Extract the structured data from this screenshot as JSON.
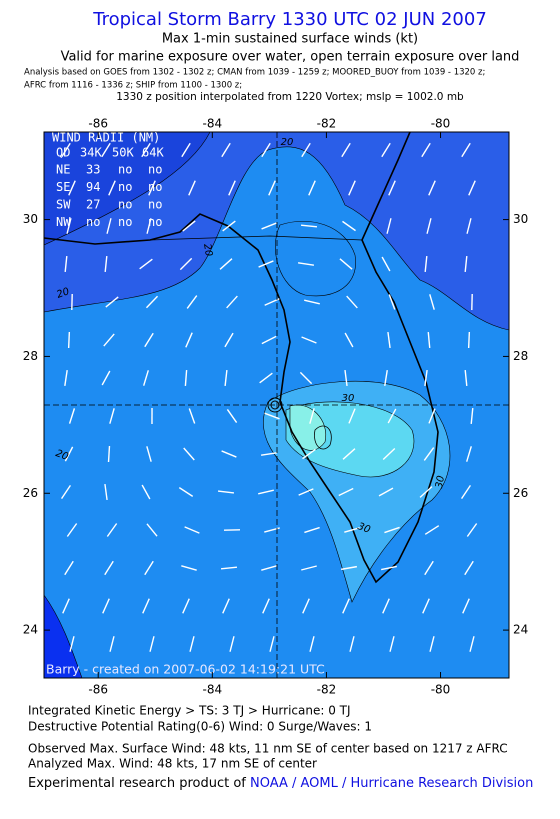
{
  "header": {
    "title": "Tropical Storm Barry 1330 UTC 02 JUN 2007",
    "subtitle": "Max 1-min sustained surface winds (kt)",
    "validity": "Valid for marine exposure over water, open terrain exposure over land",
    "analysis_line_1": "Analysis based on  GOES from 1302 - 1302 z;  CMAN from 1039 - 1259 z;  MOORED_BUOY from 1039 - 1320 z;",
    "analysis_line_2": "AFRC from 1116 - 1336 z;  SHIP from 1100 - 1300 z;",
    "position_note": "1330 z position interpolated from 1220 Vortex; mslp = 1002.0 mb"
  },
  "map": {
    "xlim": [
      -86.95,
      -78.8
    ],
    "ylim": [
      23.3,
      31.28
    ],
    "xticks": [
      -86,
      -84,
      -82,
      -80
    ],
    "yticks": [
      24,
      26,
      28,
      30
    ],
    "contour_labels": [
      "20",
      "20",
      "20",
      "20",
      "30",
      "30",
      "30"
    ],
    "credit": "Barry - created on 2007-06-02 14:19:21 UTC"
  },
  "wind_radii": {
    "title": "WIND RADII (NM)",
    "header": [
      "QD",
      "34K",
      "50K",
      "64K"
    ],
    "rows": [
      [
        "NE",
        "33",
        "no",
        "no"
      ],
      [
        "SE",
        "94",
        "no",
        "no"
      ],
      [
        "SW",
        "27",
        "no",
        "no"
      ],
      [
        "NW",
        "no",
        "no",
        "no"
      ]
    ]
  },
  "footer": {
    "ike": "Integrated Kinetic Energy > TS: 3 TJ > Hurricane: 0 TJ",
    "dpr": "Destructive Potential Rating(0-6) Wind: 0 Surge/Waves: 1",
    "observed": "Observed Max. Surface Wind: 48 kts, 11 nm SE of center based on 1217 z AFRC",
    "analyzed": "Analyzed Max. Wind: 48 kts, 17 nm SE of center",
    "credit_prefix": "Experimental research product of",
    "credit_link": "NOAA / AOML / Hurricane Research Division"
  }
}
